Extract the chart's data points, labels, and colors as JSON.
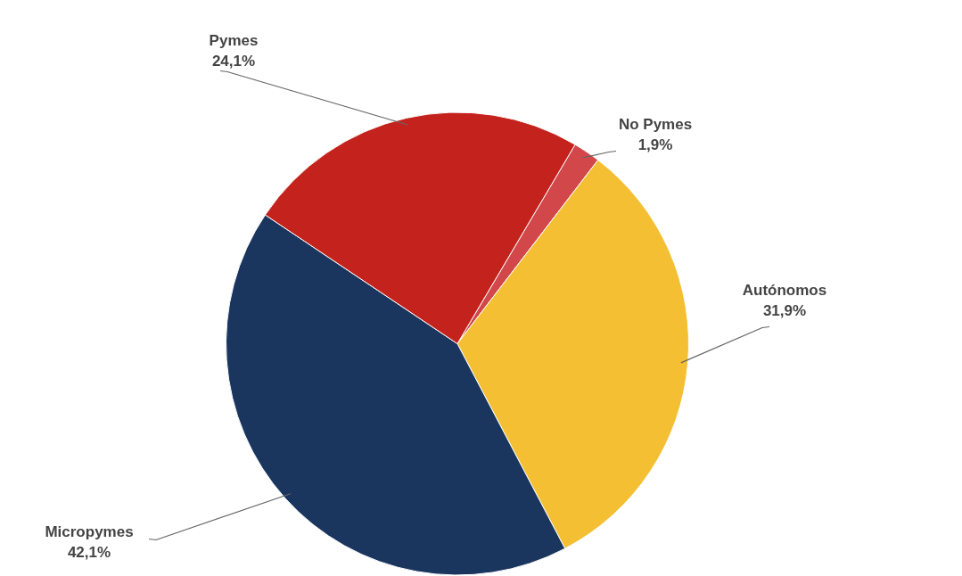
{
  "chart_data": {
    "type": "pie",
    "categories": [
      "No Pymes",
      "Autónomos",
      "Micropymes",
      "Pymes"
    ],
    "values": [
      1.9,
      31.9,
      42.1,
      24.1
    ],
    "value_labels": [
      "1,9%",
      "31,9%",
      "42,1%",
      "24,1%"
    ],
    "colors": [
      "#d2474a",
      "#f4bf33",
      "#1a365e",
      "#c4221c"
    ],
    "legend": false
  }
}
